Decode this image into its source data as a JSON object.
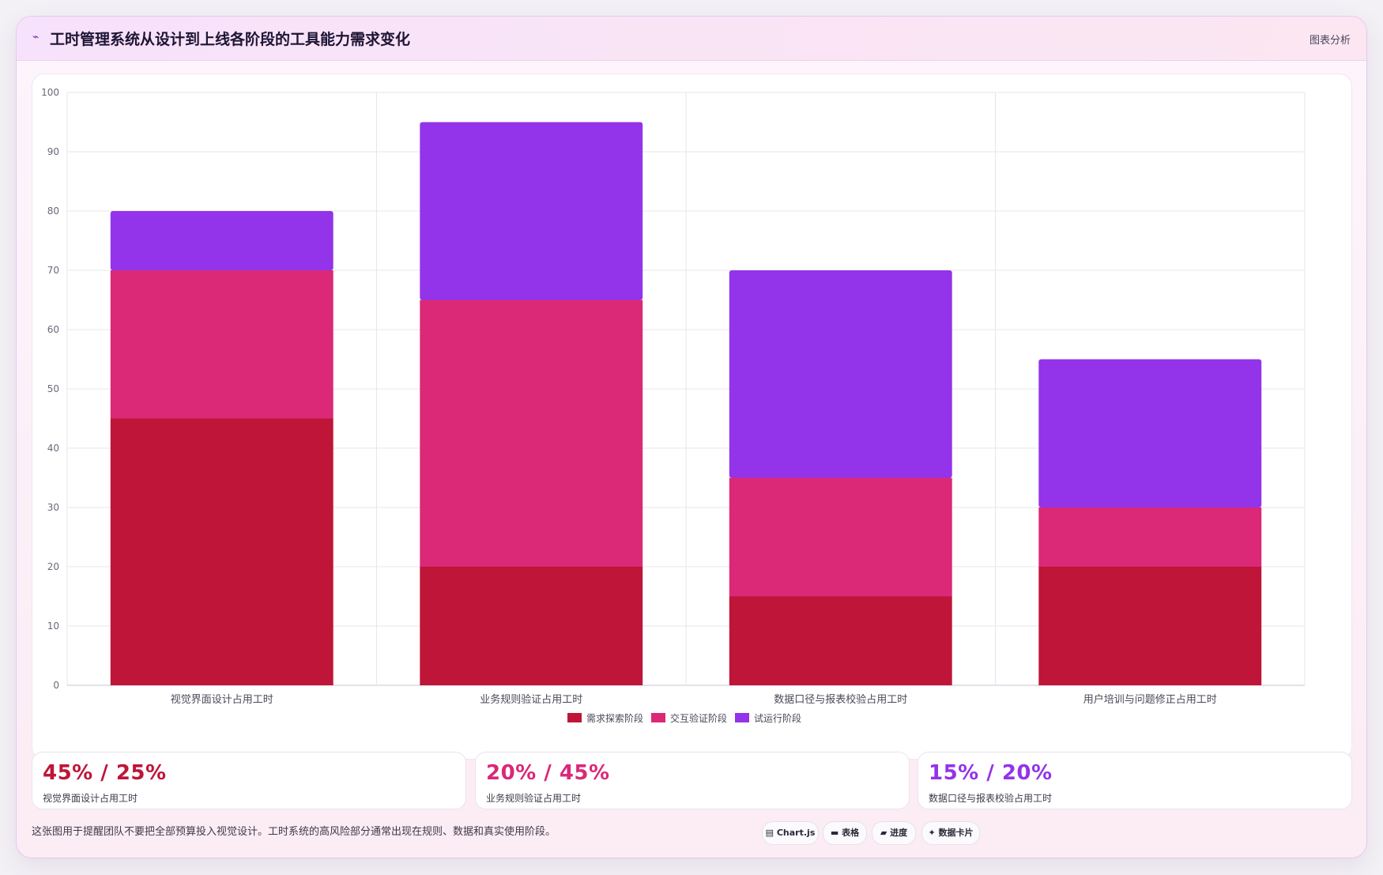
{
  "header": {
    "title_icon": "chart-line-icon",
    "title": "工时管理系统从设计到上线各阶段的工具能力需求变化",
    "link": "图表分析"
  },
  "chart_data": {
    "type": "bar",
    "stacked": true,
    "categories": [
      "视觉界面设计占用工时",
      "业务规则验证占用工时",
      "数据口径与报表校验占用工时",
      "用户培训与问题修正占用工时"
    ],
    "series": [
      {
        "name": "需求探索阶段",
        "color": "#be1538",
        "values": [
          45,
          20,
          15,
          20
        ]
      },
      {
        "name": "交互验证阶段",
        "color": "#db2877",
        "values": [
          25,
          45,
          20,
          10
        ]
      },
      {
        "name": "试运行阶段",
        "color": "#9333ea",
        "values": [
          10,
          30,
          35,
          25
        ]
      }
    ],
    "ylim": [
      0,
      100
    ],
    "yticks": [
      0,
      10,
      20,
      30,
      40,
      50,
      60,
      70,
      80,
      90,
      100
    ],
    "grid": true,
    "legend": "bottom"
  },
  "stats": [
    {
      "value": "45% / 25%",
      "label": "视觉界面设计占用工时",
      "color": "#be1538"
    },
    {
      "value": "20% / 45%",
      "label": "业务规则验证占用工时",
      "color": "#db2877"
    },
    {
      "value": "15% / 20%",
      "label": "数据口径与报表校验占用工时",
      "color": "#9333ea"
    }
  ],
  "footer": {
    "note": "这张图用于提醒团队不要把全部预算投入视觉设计。工时系统的高风险部分通常出现在规则、数据和真实使用阶段。",
    "tags": [
      {
        "icon": "chart-icon",
        "glyph": "▤",
        "label": "Chart.js"
      },
      {
        "icon": "table-icon",
        "glyph": "▬",
        "label": "表格"
      },
      {
        "icon": "progress-icon",
        "glyph": "▰",
        "label": "进度"
      },
      {
        "icon": "card-icon",
        "glyph": "✦",
        "label": "数据卡片"
      }
    ]
  }
}
